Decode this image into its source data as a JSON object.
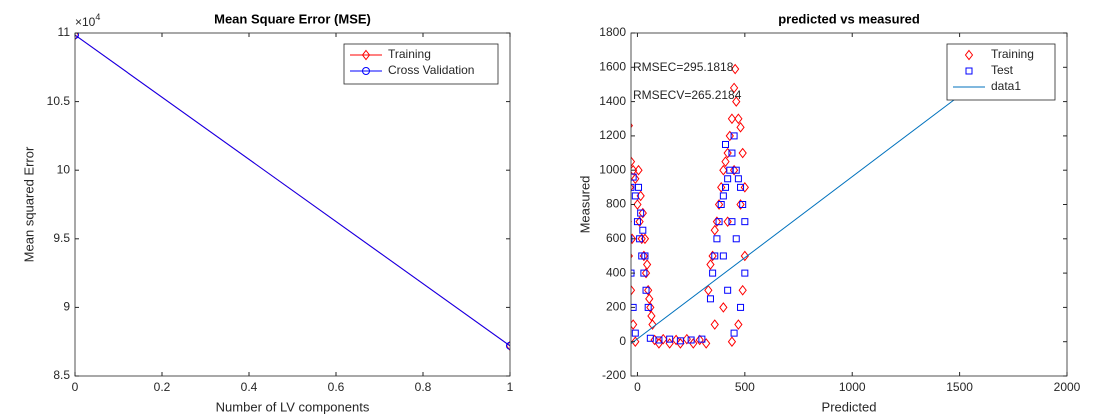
{
  "chart_data": [
    {
      "type": "line",
      "title": "Mean Square Error (MSE)",
      "x_label": "Number of LV components",
      "y_label": "Mean squared Error",
      "y_exponent": {
        "base": "×10",
        "power": "4"
      },
      "x": [
        0,
        1
      ],
      "series": [
        {
          "name": "Training",
          "color": "#ff0000",
          "marker": "diamond",
          "values": [
            10.985,
            8.72
          ]
        },
        {
          "name": "Cross Validation",
          "color": "#0000ff",
          "marker": "circle",
          "values": [
            10.985,
            8.72
          ]
        }
      ],
      "xlim": [
        0,
        1
      ],
      "xticks": [
        0,
        0.2,
        0.4,
        0.6,
        0.8,
        1
      ],
      "ylim": [
        8.5,
        11
      ],
      "yticks": [
        8.5,
        9,
        9.5,
        10,
        10.5,
        11
      ],
      "grid": false,
      "legend": "northeast"
    },
    {
      "type": "scatter",
      "title": "predicted vs measured",
      "x_label": "Predicted",
      "y_label": "Measured",
      "annotations": [
        "RMSEC=295.1818",
        "RMSECV=265.2184"
      ],
      "series": [
        {
          "name": "Training",
          "color": "#ff0000",
          "marker": "diamond",
          "x": [
            -40,
            -30,
            -20,
            -35,
            -10,
            0,
            10,
            20,
            30,
            40,
            50,
            60,
            70,
            -45,
            -40,
            -30,
            -20,
            -10,
            5,
            15,
            25,
            -25,
            35,
            45,
            55,
            65,
            80,
            100,
            120,
            150,
            180,
            200,
            230,
            260,
            290,
            320,
            330,
            340,
            350,
            360,
            370,
            380,
            390,
            400,
            410,
            420,
            430,
            440,
            450,
            460,
            470,
            480,
            490,
            500,
            455,
            500,
            490,
            470,
            440,
            400,
            360,
            420,
            450,
            480
          ],
          "values": [
            1260,
            1050,
            1000,
            900,
            950,
            800,
            700,
            600,
            500,
            400,
            300,
            200,
            100,
            700,
            500,
            300,
            100,
            0,
            1000,
            850,
            750,
            600,
            600,
            450,
            250,
            150,
            10,
            -10,
            15,
            -10,
            10,
            -10,
            15,
            -10,
            10,
            -10,
            300,
            450,
            500,
            650,
            700,
            800,
            900,
            1000,
            1050,
            1100,
            1200,
            1300,
            1480,
            1400,
            1300,
            1250,
            1100,
            900,
            1590,
            500,
            300,
            100,
            0,
            200,
            100,
            700,
            1000,
            800
          ]
        },
        {
          "name": "Test",
          "color": "#0000ff",
          "marker": "square",
          "x": [
            -45,
            -30,
            -20,
            -10,
            0,
            10,
            20,
            30,
            40,
            50,
            -40,
            -30,
            -20,
            -10,
            5,
            15,
            25,
            35,
            60,
            100,
            150,
            200,
            250,
            300,
            340,
            350,
            360,
            370,
            380,
            390,
            400,
            410,
            420,
            430,
            440,
            450,
            460,
            470,
            480,
            490,
            500,
            500,
            480,
            450,
            420,
            400,
            460,
            440,
            410
          ],
          "values": [
            950,
            900,
            960,
            850,
            700,
            600,
            500,
            400,
            300,
            200,
            600,
            400,
            200,
            50,
            900,
            750,
            650,
            500,
            20,
            10,
            15,
            5,
            10,
            15,
            250,
            400,
            500,
            600,
            700,
            800,
            850,
            900,
            950,
            1000,
            1100,
            1200,
            1000,
            950,
            900,
            800,
            700,
            400,
            200,
            50,
            300,
            500,
            600,
            700,
            1150
          ]
        },
        {
          "name": "data1",
          "color": "#0072bd",
          "marker": "none",
          "style": "line",
          "x": [
            -30,
            1620
          ],
          "values": [
            -11,
            1548
          ]
        }
      ],
      "xlim": [
        -30,
        2000
      ],
      "xticks": [
        0,
        500,
        1000,
        1500,
        2000
      ],
      "ylim": [
        -200,
        1800
      ],
      "yticks": [
        -200,
        0,
        200,
        400,
        600,
        800,
        1000,
        1200,
        1400,
        1600,
        1800
      ],
      "grid": false,
      "legend": "northeast"
    }
  ]
}
